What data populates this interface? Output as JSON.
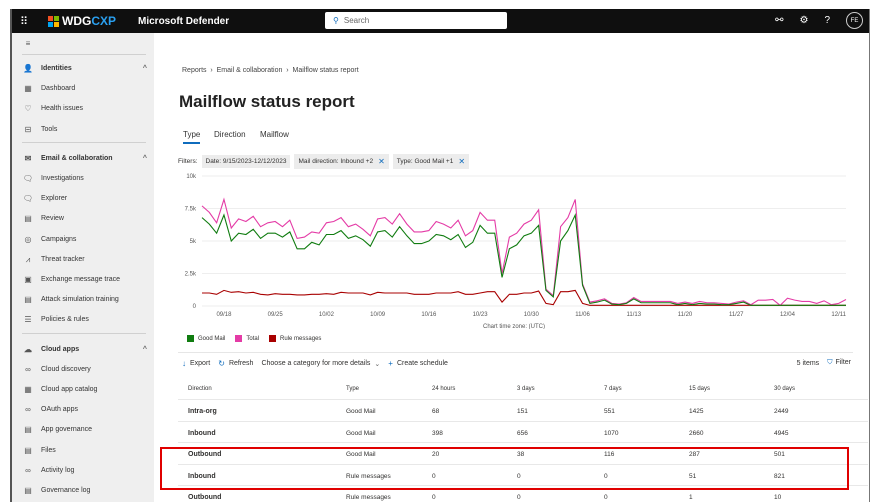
{
  "topbar": {
    "logo_a": "WDG",
    "logo_b": "CXP",
    "product": "Microsoft Defender",
    "search_placeholder": "Search",
    "avatar": "FE"
  },
  "sidebar": {
    "sections": [
      {
        "label": "Identities",
        "items": [
          "Dashboard",
          "Health issues",
          "Tools"
        ]
      },
      {
        "label": "Email & collaboration",
        "items": [
          "Investigations",
          "Explorer",
          "Review",
          "Campaigns",
          "Threat tracker",
          "Exchange message trace",
          "Attack simulation training",
          "Policies & rules"
        ]
      },
      {
        "label": "Cloud apps",
        "items": [
          "Cloud discovery",
          "Cloud app catalog",
          "OAuth apps",
          "App governance",
          "Files",
          "Activity log",
          "Governance log"
        ]
      }
    ]
  },
  "breadcrumb": [
    "Reports",
    "Email & collaboration",
    "Mailflow status report"
  ],
  "page_title": "Mailflow status report",
  "tabs": [
    "Type",
    "Direction",
    "Mailflow"
  ],
  "filters": {
    "label": "Filters:",
    "chips": [
      "Date: 9/15/2023-12/12/2023",
      "Mail direction: Inbound +2",
      "Type: Good Mail +1"
    ]
  },
  "chart_data": {
    "type": "line",
    "start_date": "2023-09-15",
    "xlabel": "Chart time zone: (UTC)",
    "ylabel": "",
    "ylim": [
      0,
      10000
    ],
    "yticks": [
      "0",
      "2.5k",
      "5k",
      "7.5k",
      "10k"
    ],
    "xticks": [
      "09/18",
      "09/25",
      "10/02",
      "10/09",
      "10/16",
      "10/23",
      "10/30",
      "11/06",
      "11/13",
      "11/20",
      "11/27",
      "12/04",
      "12/11"
    ],
    "legend": "bottom-left",
    "series": [
      {
        "name": "Good Mail",
        "color": "#107c10",
        "values": [
          6800,
          6300,
          5600,
          7000,
          5000,
          5600,
          5500,
          5900,
          5200,
          5600,
          5600,
          5300,
          5700,
          4400,
          4400,
          4900,
          4700,
          5500,
          5500,
          5800,
          5200,
          5400,
          5100,
          4600,
          5700,
          5800,
          5300,
          6100,
          5400,
          4800,
          4800,
          5000,
          5500,
          5400,
          5100,
          5500,
          4500,
          4900,
          6200,
          5600,
          5600,
          2200,
          4400,
          4700,
          5400,
          5600,
          6200,
          1200,
          700,
          5000,
          5800,
          7000,
          1600,
          200,
          300,
          450,
          150,
          100,
          200,
          550,
          250,
          250,
          250,
          250,
          250,
          100,
          200,
          100,
          200,
          150,
          150,
          100,
          100,
          200,
          300,
          50,
          50,
          50,
          50,
          50,
          50,
          50,
          50,
          50,
          50,
          50,
          50,
          50,
          50
        ]
      },
      {
        "name": "Total",
        "color": "#e43ba6",
        "values": [
          7700,
          7200,
          6400,
          8200,
          6000,
          6700,
          6500,
          6900,
          6100,
          6400,
          6500,
          6100,
          6600,
          5200,
          5300,
          5700,
          5600,
          6400,
          6500,
          6800,
          6100,
          6300,
          5900,
          5400,
          6700,
          6800,
          6300,
          7100,
          6300,
          5700,
          5700,
          5800,
          6500,
          6300,
          6000,
          6600,
          5400,
          5800,
          7200,
          6600,
          6600,
          2500,
          5300,
          5600,
          6300,
          6600,
          7400,
          1300,
          800,
          6100,
          6800,
          8200,
          1700,
          300,
          400,
          550,
          200,
          150,
          250,
          650,
          350,
          350,
          350,
          350,
          350,
          200,
          300,
          200,
          350,
          250,
          250,
          200,
          150,
          300,
          400,
          100,
          450,
          450,
          500,
          50,
          600,
          450,
          350,
          350,
          200,
          400,
          100,
          200,
          500
        ]
      },
      {
        "name": "Rule messages",
        "color": "#a80000",
        "values": [
          1000,
          1000,
          900,
          1200,
          1050,
          1100,
          1000,
          1050,
          900,
          850,
          950,
          900,
          900,
          850,
          850,
          900,
          900,
          950,
          900,
          1050,
          1000,
          1000,
          1000,
          850,
          1050,
          1000,
          1000,
          1000,
          1000,
          900,
          900,
          900,
          1000,
          1000,
          1000,
          1100,
          900,
          900,
          1000,
          1100,
          1100,
          300,
          900,
          900,
          1000,
          1000,
          1150,
          200,
          100,
          1100,
          1100,
          1200,
          200,
          50,
          50,
          50,
          50,
          50,
          50,
          50,
          50,
          50,
          50,
          50,
          50,
          50,
          50,
          50,
          50,
          50,
          50,
          50,
          50,
          50,
          50,
          50,
          50,
          50,
          50,
          50,
          50,
          50,
          50,
          50,
          50,
          50,
          50,
          50,
          50
        ]
      }
    ]
  },
  "toolbar": {
    "export": "Export",
    "refresh": "Refresh",
    "category": "Choose a category for more details",
    "schedule": "Create schedule",
    "count": "5 items",
    "filter": "Filter"
  },
  "table": {
    "headers": [
      "Direction",
      "Type",
      "24 hours",
      "3 days",
      "7 days",
      "15 days",
      "30 days"
    ],
    "rows": [
      [
        "Intra-org",
        "Good Mail",
        "68",
        "151",
        "551",
        "1425",
        "2449"
      ],
      [
        "Inbound",
        "Good Mail",
        "398",
        "656",
        "1070",
        "2660",
        "4945"
      ],
      [
        "Outbound",
        "Good Mail",
        "20",
        "38",
        "116",
        "287",
        "501"
      ],
      [
        "Inbound",
        "Rule messages",
        "0",
        "0",
        "0",
        "51",
        "821"
      ],
      [
        "Outbound",
        "Rule messages",
        "0",
        "0",
        "0",
        "1",
        "10"
      ]
    ]
  }
}
